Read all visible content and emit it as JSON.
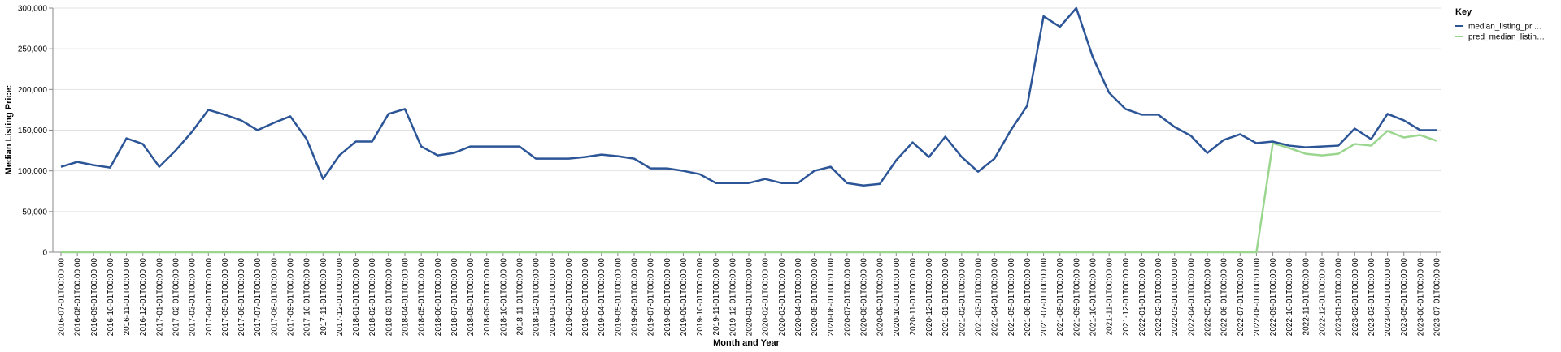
{
  "chart_data": {
    "type": "line",
    "y_label": "Median Listing Price:",
    "x_label": "Month and Year",
    "legend_title": "Key",
    "legend_position": "right",
    "grid": true,
    "categories": [
      "2016-07-01T00:00:00",
      "2016-08-01T00:00:00",
      "2016-09-01T00:00:00",
      "2016-10-01T00:00:00",
      "2016-11-01T00:00:00",
      "2016-12-01T00:00:00",
      "2017-01-01T00:00:00",
      "2017-02-01T00:00:00",
      "2017-03-01T00:00:00",
      "2017-04-01T00:00:00",
      "2017-05-01T00:00:00",
      "2017-06-01T00:00:00",
      "2017-07-01T00:00:00",
      "2017-08-01T00:00:00",
      "2017-09-01T00:00:00",
      "2017-10-01T00:00:00",
      "2017-11-01T00:00:00",
      "2017-12-01T00:00:00",
      "2018-01-01T00:00:00",
      "2018-02-01T00:00:00",
      "2018-03-01T00:00:00",
      "2018-04-01T00:00:00",
      "2018-05-01T00:00:00",
      "2018-06-01T00:00:00",
      "2018-07-01T00:00:00",
      "2018-08-01T00:00:00",
      "2018-09-01T00:00:00",
      "2018-10-01T00:00:00",
      "2018-11-01T00:00:00",
      "2018-12-01T00:00:00",
      "2019-01-01T00:00:00",
      "2019-02-01T00:00:00",
      "2019-03-01T00:00:00",
      "2019-04-01T00:00:00",
      "2019-05-01T00:00:00",
      "2019-06-01T00:00:00",
      "2019-07-01T00:00:00",
      "2019-08-01T00:00:00",
      "2019-09-01T00:00:00",
      "2019-10-01T00:00:00",
      "2019-11-01T00:00:00",
      "2019-12-01T00:00:00",
      "2020-01-01T00:00:00",
      "2020-02-01T00:00:00",
      "2020-03-01T00:00:00",
      "2020-04-01T00:00:00",
      "2020-05-01T00:00:00",
      "2020-06-01T00:00:00",
      "2020-07-01T00:00:00",
      "2020-08-01T00:00:00",
      "2020-09-01T00:00:00",
      "2020-10-01T00:00:00",
      "2020-11-01T00:00:00",
      "2020-12-01T00:00:00",
      "2021-01-01T00:00:00",
      "2021-02-01T00:00:00",
      "2021-03-01T00:00:00",
      "2021-04-01T00:00:00",
      "2021-05-01T00:00:00",
      "2021-06-01T00:00:00",
      "2021-07-01T00:00:00",
      "2021-08-01T00:00:00",
      "2021-09-01T00:00:00",
      "2021-10-01T00:00:00",
      "2021-11-01T00:00:00",
      "2021-12-01T00:00:00",
      "2022-01-01T00:00:00",
      "2022-02-01T00:00:00",
      "2022-03-01T00:00:00",
      "2022-04-01T00:00:00",
      "2022-05-01T00:00:00",
      "2022-06-01T00:00:00",
      "2022-07-01T00:00:00",
      "2022-08-01T00:00:00",
      "2022-09-01T00:00:00",
      "2022-10-01T00:00:00",
      "2022-11-01T00:00:00",
      "2022-12-01T00:00:00",
      "2023-01-01T00:00:00",
      "2023-02-01T00:00:00",
      "2023-03-01T00:00:00",
      "2023-04-01T00:00:00",
      "2023-05-01T00:00:00",
      "2023-06-01T00:00:00",
      "2023-07-01T00:00:00"
    ],
    "series": [
      {
        "name": "median_listing_pri…",
        "color": "#2c5597",
        "values": [
          105000,
          111000,
          107000,
          104000,
          140000,
          133000,
          105000,
          125000,
          148000,
          175000,
          169000,
          162000,
          150000,
          159000,
          167000,
          139000,
          90000,
          119000,
          136000,
          136000,
          170000,
          176000,
          130000,
          119000,
          122000,
          130000,
          130000,
          130000,
          130000,
          115000,
          115000,
          115000,
          117000,
          120000,
          118000,
          115000,
          103000,
          103000,
          100000,
          96000,
          85000,
          85000,
          85000,
          90000,
          85000,
          85000,
          100000,
          105000,
          85000,
          82000,
          84000,
          113000,
          135000,
          117000,
          142000,
          117000,
          99000,
          115000,
          150000,
          180000,
          290000,
          277000,
          300000,
          240000,
          196000,
          176000,
          169000,
          169000,
          154000,
          143000,
          122000,
          138000,
          145000,
          134000,
          136000,
          131000,
          129000,
          130000,
          131000,
          152000,
          139000,
          170000,
          162000,
          150000,
          150000
        ]
      },
      {
        "name": "pred_median_listin…",
        "color": "#9bd68f",
        "values": [
          0,
          0,
          0,
          0,
          0,
          0,
          0,
          0,
          0,
          0,
          0,
          0,
          0,
          0,
          0,
          0,
          0,
          0,
          0,
          0,
          0,
          0,
          0,
          0,
          0,
          0,
          0,
          0,
          0,
          0,
          0,
          0,
          0,
          0,
          0,
          0,
          0,
          0,
          0,
          0,
          0,
          0,
          0,
          0,
          0,
          0,
          0,
          0,
          0,
          0,
          0,
          0,
          0,
          0,
          0,
          0,
          0,
          0,
          0,
          0,
          0,
          0,
          0,
          0,
          0,
          0,
          0,
          0,
          0,
          0,
          0,
          0,
          0,
          0,
          134000,
          128000,
          121000,
          119000,
          121000,
          133000,
          131000,
          149000,
          141000,
          144000,
          137000
        ]
      }
    ],
    "ylim": [
      0,
      300000
    ],
    "yticks": [
      0,
      {
        "value": 50000,
        "label": "50,000"
      },
      {
        "value": 100000,
        "label": "100,000"
      },
      {
        "value": 150000,
        "label": "150,000"
      },
      {
        "value": 200000,
        "label": "200,000"
      },
      {
        "value": 250000,
        "label": "250,000"
      },
      {
        "value": 300000,
        "label": "300,000"
      }
    ]
  }
}
